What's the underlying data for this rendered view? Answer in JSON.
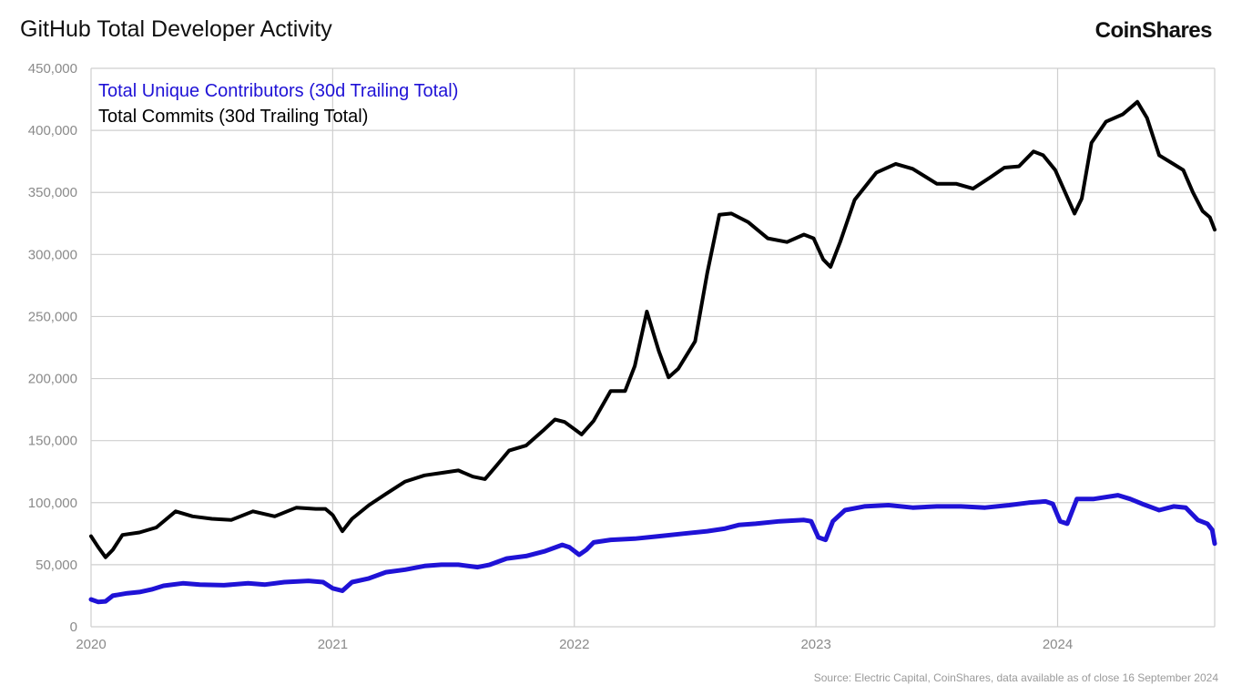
{
  "header": {
    "title": "GitHub Total Developer Activity",
    "brand": "CoinShares"
  },
  "footer": {
    "source": "Source: Electric Capital, CoinShares, data available as of close 16 September 2024"
  },
  "colors": {
    "contributors": "#1f12d6",
    "commits": "#000000",
    "grid": "#cfcfcf",
    "axis_text": "#8a8a8a"
  },
  "chart_data": {
    "type": "line",
    "title": "GitHub Total Developer Activity",
    "xlabel": "",
    "ylabel": "",
    "xlim": [
      2020.0,
      2024.65
    ],
    "ylim": [
      0,
      450000
    ],
    "grid": true,
    "legend_position": "top-left",
    "x_ticks": [
      {
        "value": 2020,
        "label": "2020"
      },
      {
        "value": 2021,
        "label": "2021"
      },
      {
        "value": 2022,
        "label": "2022"
      },
      {
        "value": 2023,
        "label": "2023"
      },
      {
        "value": 2024,
        "label": "2024"
      }
    ],
    "y_ticks": [
      {
        "value": 0,
        "label": "0"
      },
      {
        "value": 50000,
        "label": "50,000"
      },
      {
        "value": 100000,
        "label": "100,000"
      },
      {
        "value": 150000,
        "label": "150,000"
      },
      {
        "value": 200000,
        "label": "200,000"
      },
      {
        "value": 250000,
        "label": "250,000"
      },
      {
        "value": 300000,
        "label": "300,000"
      },
      {
        "value": 350000,
        "label": "350,000"
      },
      {
        "value": 400000,
        "label": "400,000"
      },
      {
        "value": 450000,
        "label": "450,000"
      }
    ],
    "series": [
      {
        "name": "Total Unique Contributors (30d Trailing Total)",
        "key": "contributors",
        "points": [
          [
            2020.0,
            22000
          ],
          [
            2020.03,
            20000
          ],
          [
            2020.06,
            20500
          ],
          [
            2020.09,
            25000
          ],
          [
            2020.15,
            27000
          ],
          [
            2020.2,
            28000
          ],
          [
            2020.25,
            30000
          ],
          [
            2020.3,
            33000
          ],
          [
            2020.38,
            35000
          ],
          [
            2020.45,
            34000
          ],
          [
            2020.55,
            33500
          ],
          [
            2020.65,
            35000
          ],
          [
            2020.72,
            34000
          ],
          [
            2020.8,
            36000
          ],
          [
            2020.9,
            37000
          ],
          [
            2020.96,
            36000
          ],
          [
            2021.0,
            31000
          ],
          [
            2021.04,
            29000
          ],
          [
            2021.08,
            36000
          ],
          [
            2021.15,
            39000
          ],
          [
            2021.22,
            44000
          ],
          [
            2021.3,
            46000
          ],
          [
            2021.38,
            49000
          ],
          [
            2021.45,
            50000
          ],
          [
            2021.52,
            50000
          ],
          [
            2021.6,
            48000
          ],
          [
            2021.65,
            50000
          ],
          [
            2021.72,
            55000
          ],
          [
            2021.8,
            57000
          ],
          [
            2021.88,
            61000
          ],
          [
            2021.95,
            66000
          ],
          [
            2021.98,
            64000
          ],
          [
            2022.02,
            58000
          ],
          [
            2022.05,
            62000
          ],
          [
            2022.08,
            68000
          ],
          [
            2022.15,
            70000
          ],
          [
            2022.25,
            71000
          ],
          [
            2022.35,
            73000
          ],
          [
            2022.45,
            75000
          ],
          [
            2022.55,
            77000
          ],
          [
            2022.62,
            79000
          ],
          [
            2022.68,
            82000
          ],
          [
            2022.75,
            83000
          ],
          [
            2022.85,
            85000
          ],
          [
            2022.95,
            86000
          ],
          [
            2022.98,
            85000
          ],
          [
            2023.01,
            72000
          ],
          [
            2023.04,
            70000
          ],
          [
            2023.07,
            85000
          ],
          [
            2023.12,
            94000
          ],
          [
            2023.2,
            97000
          ],
          [
            2023.3,
            98000
          ],
          [
            2023.4,
            96000
          ],
          [
            2023.5,
            97000
          ],
          [
            2023.6,
            97000
          ],
          [
            2023.7,
            96000
          ],
          [
            2023.8,
            98000
          ],
          [
            2023.88,
            100000
          ],
          [
            2023.95,
            101000
          ],
          [
            2023.98,
            99000
          ],
          [
            2024.01,
            85000
          ],
          [
            2024.04,
            83000
          ],
          [
            2024.08,
            103000
          ],
          [
            2024.15,
            103000
          ],
          [
            2024.25,
            106000
          ],
          [
            2024.3,
            103000
          ],
          [
            2024.35,
            99000
          ],
          [
            2024.42,
            94000
          ],
          [
            2024.48,
            97000
          ],
          [
            2024.53,
            96000
          ],
          [
            2024.58,
            86000
          ],
          [
            2024.62,
            83000
          ],
          [
            2024.64,
            78000
          ],
          [
            2024.65,
            67000
          ]
        ]
      },
      {
        "name": "Total Commits (30d Trailing Total)",
        "key": "commits",
        "points": [
          [
            2020.0,
            73000
          ],
          [
            2020.03,
            64000
          ],
          [
            2020.06,
            56000
          ],
          [
            2020.09,
            62000
          ],
          [
            2020.13,
            74000
          ],
          [
            2020.2,
            76000
          ],
          [
            2020.27,
            80000
          ],
          [
            2020.35,
            93000
          ],
          [
            2020.42,
            89000
          ],
          [
            2020.5,
            87000
          ],
          [
            2020.58,
            86000
          ],
          [
            2020.67,
            93000
          ],
          [
            2020.76,
            89000
          ],
          [
            2020.85,
            96000
          ],
          [
            2020.93,
            95000
          ],
          [
            2020.97,
            95000
          ],
          [
            2021.0,
            90000
          ],
          [
            2021.04,
            77000
          ],
          [
            2021.08,
            87000
          ],
          [
            2021.15,
            98000
          ],
          [
            2021.22,
            107000
          ],
          [
            2021.3,
            117000
          ],
          [
            2021.38,
            122000
          ],
          [
            2021.45,
            124000
          ],
          [
            2021.52,
            126000
          ],
          [
            2021.58,
            121000
          ],
          [
            2021.63,
            119000
          ],
          [
            2021.67,
            128000
          ],
          [
            2021.73,
            142000
          ],
          [
            2021.8,
            146000
          ],
          [
            2021.87,
            158000
          ],
          [
            2021.92,
            167000
          ],
          [
            2021.96,
            165000
          ],
          [
            2022.03,
            155000
          ],
          [
            2022.08,
            166000
          ],
          [
            2022.15,
            190000
          ],
          [
            2022.21,
            190000
          ],
          [
            2022.25,
            210000
          ],
          [
            2022.3,
            254000
          ],
          [
            2022.35,
            222000
          ],
          [
            2022.39,
            201000
          ],
          [
            2022.43,
            208000
          ],
          [
            2022.5,
            230000
          ],
          [
            2022.55,
            285000
          ],
          [
            2022.6,
            332000
          ],
          [
            2022.65,
            333000
          ],
          [
            2022.72,
            326000
          ],
          [
            2022.8,
            313000
          ],
          [
            2022.88,
            310000
          ],
          [
            2022.95,
            316000
          ],
          [
            2022.99,
            313000
          ],
          [
            2023.03,
            296000
          ],
          [
            2023.06,
            290000
          ],
          [
            2023.1,
            310000
          ],
          [
            2023.16,
            344000
          ],
          [
            2023.25,
            366000
          ],
          [
            2023.33,
            373000
          ],
          [
            2023.4,
            369000
          ],
          [
            2023.5,
            357000
          ],
          [
            2023.58,
            357000
          ],
          [
            2023.65,
            353000
          ],
          [
            2023.72,
            362000
          ],
          [
            2023.78,
            370000
          ],
          [
            2023.84,
            371000
          ],
          [
            2023.9,
            383000
          ],
          [
            2023.94,
            380000
          ],
          [
            2023.99,
            368000
          ],
          [
            2024.02,
            355000
          ],
          [
            2024.07,
            333000
          ],
          [
            2024.1,
            345000
          ],
          [
            2024.14,
            390000
          ],
          [
            2024.2,
            407000
          ],
          [
            2024.27,
            413000
          ],
          [
            2024.33,
            423000
          ],
          [
            2024.37,
            410000
          ],
          [
            2024.42,
            380000
          ],
          [
            2024.47,
            374000
          ],
          [
            2024.52,
            368000
          ],
          [
            2024.56,
            350000
          ],
          [
            2024.6,
            335000
          ],
          [
            2024.63,
            330000
          ],
          [
            2024.65,
            320000
          ]
        ]
      }
    ]
  }
}
